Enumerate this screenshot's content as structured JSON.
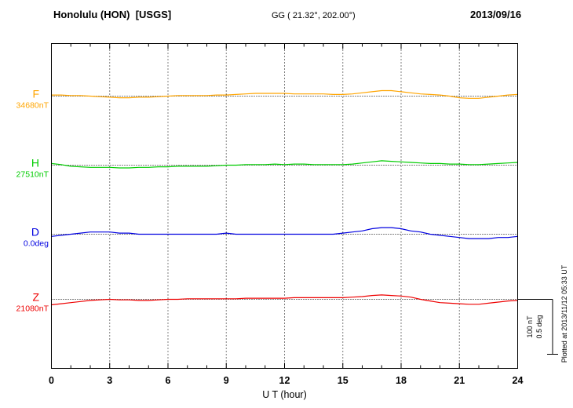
{
  "header": {
    "station": "Honolulu (HON)  [USGS]",
    "coords": "GG ( 21.32°, 202.00°)",
    "date": "2013/09/16"
  },
  "side_note": "Plotted at 2013/11/12 05:33 UT",
  "scale_bar": {
    "labels": [
      "100 nT",
      "0.5 deg"
    ]
  },
  "chart_data": {
    "type": "line",
    "title": "Honolulu (HON) [USGS] magnetogram 2013/09/16",
    "xlabel": "U T (hour)",
    "x_range": [
      0,
      24
    ],
    "x_ticks": [
      0,
      3,
      6,
      9,
      12,
      15,
      18,
      21,
      24
    ],
    "sample_interval_hours": 0.5,
    "grid": "dotted vertical gridlines every 3 hours; dotted horizontal baseline per channel",
    "legend_position": "left channel labels",
    "scale_reference": {
      "nT": 100,
      "deg": 0.5
    },
    "series": [
      {
        "name": "F",
        "unit": "nT",
        "color": "#ffa500",
        "baseline_label": "34680nT",
        "baseline_value": 34680,
        "offsets": [
          2,
          2,
          1,
          1,
          0,
          -1,
          -2,
          -3,
          -3,
          -2,
          -2,
          -1,
          0,
          1,
          1,
          1,
          1,
          2,
          2,
          3,
          4,
          5,
          5,
          5,
          5,
          4,
          4,
          4,
          4,
          3,
          3,
          4,
          6,
          8,
          10,
          10,
          8,
          6,
          4,
          3,
          2,
          0,
          -3,
          -4,
          -4,
          -2,
          0,
          2,
          3
        ]
      },
      {
        "name": "H",
        "unit": "nT",
        "color": "#00cc00",
        "baseline_label": "27510nT",
        "baseline_value": 27510,
        "offsets": [
          3,
          1,
          -2,
          -3,
          -4,
          -4,
          -4,
          -5,
          -5,
          -4,
          -4,
          -3,
          -3,
          -2,
          -2,
          -2,
          -2,
          -1,
          0,
          0,
          1,
          1,
          1,
          2,
          1,
          2,
          2,
          1,
          1,
          1,
          1,
          2,
          4,
          6,
          8,
          7,
          6,
          5,
          4,
          3,
          3,
          2,
          2,
          1,
          1,
          2,
          3,
          4,
          5
        ]
      },
      {
        "name": "D",
        "unit": "deg",
        "color": "#0000e0",
        "baseline_label": "0.0deg",
        "baseline_value": 0.0,
        "offsets": [
          -0.02,
          -0.01,
          0,
          0.01,
          0.02,
          0.02,
          0.02,
          0.01,
          0.01,
          0,
          0,
          0,
          0,
          0,
          0,
          0,
          0,
          0,
          0.01,
          0,
          0,
          0,
          0,
          0,
          0,
          0,
          0,
          0,
          0,
          0,
          0.01,
          0.02,
          0.03,
          0.05,
          0.06,
          0.06,
          0.05,
          0.03,
          0.02,
          0,
          -0.01,
          -0.02,
          -0.03,
          -0.04,
          -0.04,
          -0.04,
          -0.03,
          -0.03,
          -0.02
        ]
      },
      {
        "name": "Z",
        "unit": "nT",
        "color": "#ee0000",
        "baseline_label": "21080nT",
        "baseline_value": 21080,
        "offsets": [
          -10,
          -8,
          -6,
          -4,
          -2,
          -1,
          0,
          -1,
          -1,
          -2,
          -2,
          -1,
          0,
          0,
          1,
          1,
          1,
          1,
          1,
          1,
          2,
          2,
          2,
          2,
          2,
          3,
          3,
          3,
          3,
          3,
          3,
          4,
          5,
          7,
          8,
          7,
          6,
          4,
          0,
          -3,
          -6,
          -7,
          -8,
          -9,
          -9,
          -7,
          -5,
          -3,
          -2
        ]
      }
    ]
  }
}
